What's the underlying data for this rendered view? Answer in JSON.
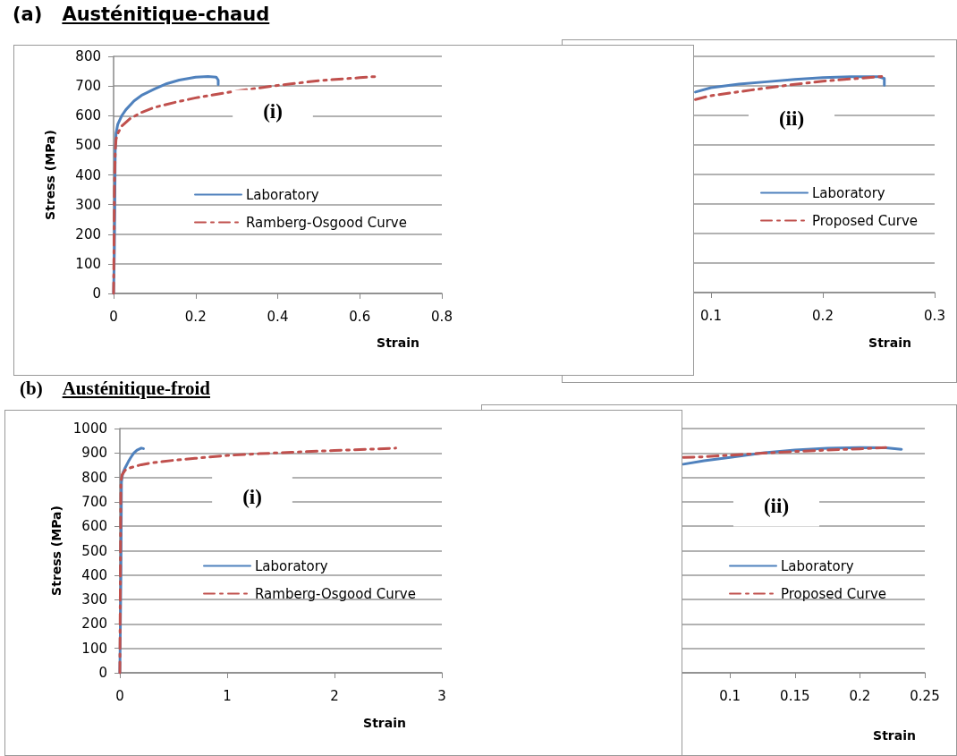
{
  "chart_data": [
    {
      "type": "line",
      "title": "(a) Austénitique-chaud",
      "xlabel": "Strain",
      "ylabel": "Stress (MPa)",
      "annotations": [
        "(i)"
      ],
      "xlim": [
        0,
        0.8
      ],
      "xticks": [
        0,
        0.2,
        0.4,
        0.6,
        0.8
      ],
      "ylim": [
        0,
        800
      ],
      "yticks": [
        0,
        100,
        200,
        300,
        400,
        500,
        600,
        700,
        800
      ],
      "grid": "y",
      "legend": "right",
      "marker": "none",
      "series": [
        {
          "name": "Laboratory",
          "color": "#4f81bd",
          "line_style": "solid",
          "x": [
            0,
            0.002,
            0.003,
            0.004,
            0.006,
            0.01,
            0.02,
            0.03,
            0.05,
            0.07,
            0.1,
            0.13,
            0.16,
            0.2,
            0.23,
            0.25,
            0.255,
            0.255
          ],
          "values": [
            0,
            150,
            300,
            480,
            540,
            570,
            600,
            620,
            650,
            670,
            690,
            708,
            720,
            730,
            732,
            730,
            720,
            705
          ]
        },
        {
          "name": "Ramberg-Osgood Curve",
          "color": "#c0504d",
          "line_style": "dashed",
          "x": [
            0,
            0.001,
            0.002,
            0.004,
            0.006,
            0.01,
            0.02,
            0.04,
            0.07,
            0.1,
            0.15,
            0.2,
            0.25,
            0.3,
            0.4,
            0.5,
            0.6,
            0.64
          ],
          "values": [
            0,
            150,
            350,
            480,
            520,
            540,
            565,
            590,
            612,
            628,
            645,
            660,
            672,
            683,
            702,
            718,
            728,
            732
          ]
        }
      ]
    },
    {
      "type": "line",
      "xlabel": "Strain",
      "annotations": [
        "(ii)"
      ],
      "xlim": [
        0,
        0.3
      ],
      "xticks": [
        0.1,
        0.2,
        0.3
      ],
      "ylim": [
        0,
        800
      ],
      "yticks": [
        0,
        100,
        200,
        300,
        400,
        500,
        600,
        700,
        800
      ],
      "grid": "y",
      "legend": "right",
      "marker": "none",
      "tick_labels": "x",
      "series": [
        {
          "name": "Laboratory",
          "color": "#4f81bd",
          "line_style": "solid",
          "x": [
            0.086,
            0.1,
            0.125,
            0.15,
            0.175,
            0.2,
            0.225,
            0.25,
            0.255,
            0.255
          ],
          "values": [
            679,
            694,
            706,
            714,
            722,
            728,
            731,
            731,
            725,
            702
          ]
        },
        {
          "name": "Proposed Curve",
          "color": "#c0504d",
          "line_style": "dashed",
          "x": [
            0.086,
            0.1,
            0.136,
            0.17,
            0.2,
            0.23,
            0.25,
            0.256
          ],
          "values": [
            654,
            667,
            686,
            703,
            716,
            725,
            731,
            733
          ]
        }
      ]
    },
    {
      "type": "line",
      "title": "(b) Austénitique-froid",
      "xlabel": "Strain",
      "ylabel": "Stress (MPa)",
      "annotations": [
        "(i)"
      ],
      "xlim": [
        0,
        3
      ],
      "xticks": [
        0,
        1,
        2,
        3
      ],
      "ylim": [
        0,
        1000
      ],
      "yticks": [
        0,
        100,
        200,
        300,
        400,
        500,
        600,
        700,
        800,
        900,
        1000
      ],
      "grid": "y",
      "legend": "right",
      "marker": "none",
      "series": [
        {
          "name": "Laboratory",
          "color": "#4f81bd",
          "line_style": "solid",
          "x": [
            0,
            0.01,
            0.015,
            0.02,
            0.03,
            0.05,
            0.08,
            0.1,
            0.13,
            0.16,
            0.2,
            0.22
          ],
          "values": [
            0,
            400,
            780,
            800,
            820,
            840,
            865,
            880,
            900,
            912,
            920,
            918
          ]
        },
        {
          "name": "Ramberg-Osgood Curve",
          "color": "#c0504d",
          "line_style": "dashed",
          "x": [
            0,
            0.005,
            0.01,
            0.02,
            0.05,
            0.1,
            0.2,
            0.3,
            0.5,
            0.7,
            1,
            1.3,
            1.6,
            2,
            2.3,
            2.57
          ],
          "values": [
            0,
            400,
            780,
            810,
            830,
            840,
            852,
            860,
            870,
            878,
            890,
            897,
            903,
            910,
            915,
            920
          ]
        }
      ]
    },
    {
      "type": "line",
      "xlabel": "Strain",
      "annotations": [
        "(ii)"
      ],
      "xlim": [
        0,
        0.25
      ],
      "xticks": [
        0.1,
        0.15,
        0.2,
        0.25
      ],
      "ylim": [
        0,
        1000
      ],
      "yticks": [
        0,
        100,
        200,
        300,
        400,
        500,
        600,
        700,
        800,
        900,
        1000
      ],
      "grid": "y",
      "legend": "right",
      "marker": "none",
      "tick_labels": "x",
      "series": [
        {
          "name": "Laboratory",
          "color": "#4f81bd",
          "line_style": "solid",
          "x": [
            0.064,
            0.08,
            0.1,
            0.125,
            0.15,
            0.175,
            0.2,
            0.22,
            0.232
          ],
          "values": [
            854,
            868,
            882,
            900,
            912,
            919,
            922,
            921,
            915
          ]
        },
        {
          "name": "Proposed Curve",
          "color": "#c0504d",
          "line_style": "dashed",
          "x": [
            0.064,
            0.078,
            0.1,
            0.125,
            0.15,
            0.175,
            0.2,
            0.22
          ],
          "values": [
            882,
            884,
            891,
            899,
            906,
            912,
            917,
            922
          ]
        }
      ]
    }
  ]
}
